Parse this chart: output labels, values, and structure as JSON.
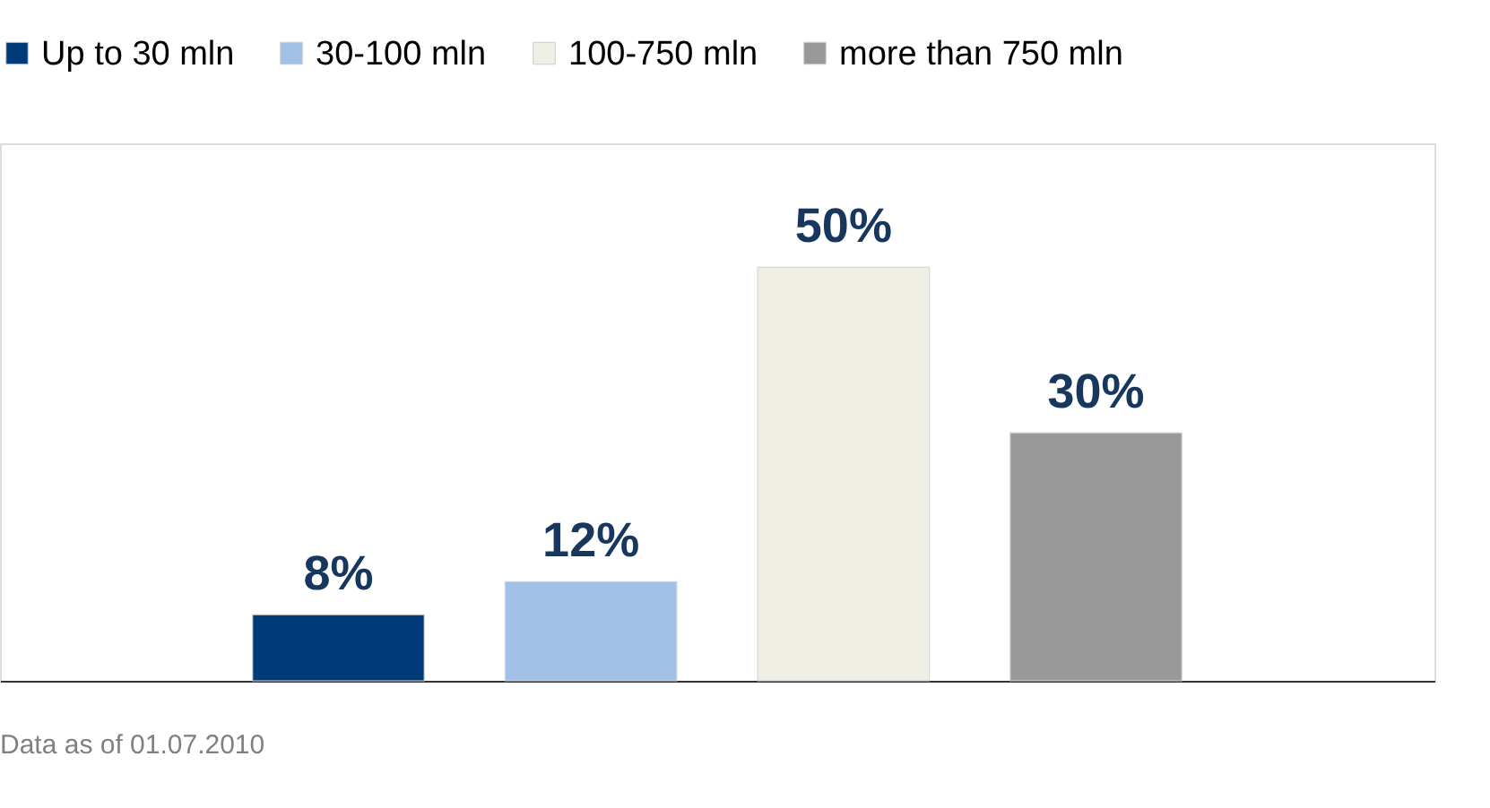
{
  "chart_data": {
    "type": "bar",
    "categories": [
      null,
      null,
      null,
      null
    ],
    "series": [
      {
        "name": "Up to 30 mln",
        "color": "#003a78",
        "values": [
          8,
          null,
          null,
          null
        ],
        "value_labels": [
          "8%",
          null,
          null,
          null
        ]
      },
      {
        "name": "30-100 mln",
        "color": "#a3c1e6",
        "values": [
          null,
          12,
          null,
          null
        ],
        "value_labels": [
          null,
          "12%",
          null,
          null
        ]
      },
      {
        "name": "100-750 mln",
        "color": "#efefe6",
        "values": [
          null,
          null,
          50,
          null
        ],
        "value_labels": [
          null,
          null,
          "50%",
          null
        ]
      },
      {
        "name": "more than 750 mln",
        "color": "#999999",
        "values": [
          null,
          null,
          null,
          30
        ],
        "value_labels": [
          null,
          null,
          null,
          "30%"
        ]
      }
    ],
    "legend": "top left",
    "stacked": true,
    "tick_labels": false,
    "grid": false,
    "annotations": [
      "Data as of 01.07.2010"
    ]
  }
}
